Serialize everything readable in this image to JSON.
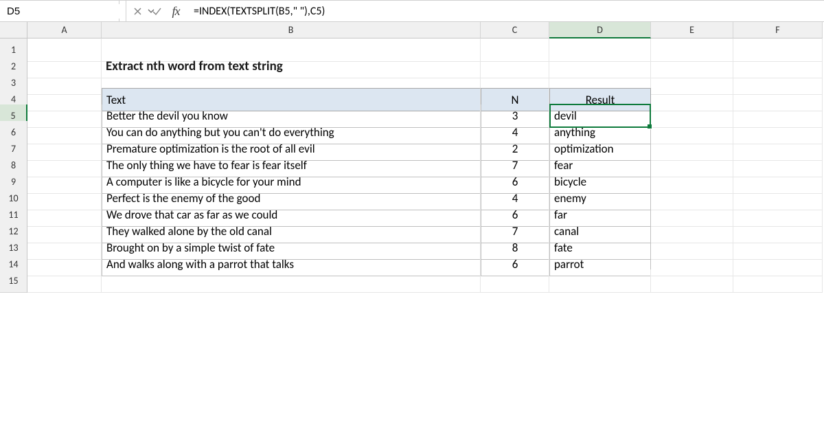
{
  "name_box": "D5",
  "formula": "=INDEX(TEXTSPLIT(B5,\" \"),C5)",
  "columns": [
    "A",
    "B",
    "C",
    "D",
    "E",
    "F"
  ],
  "selected_col_index": 3,
  "selected_row_index": 4,
  "title": "Extract nth word from text string",
  "headers": {
    "text": "Text",
    "n": "N",
    "result": "Result"
  },
  "rows": [
    {
      "text": "Better the devil you know",
      "n": 3,
      "result": "devil"
    },
    {
      "text": "You can do anything but you can't do everything",
      "n": 4,
      "result": "anything"
    },
    {
      "text": "Premature optimization is the root of all evil",
      "n": 2,
      "result": "optimization"
    },
    {
      "text": "The only thing we have to fear is fear itself",
      "n": 7,
      "result": "fear"
    },
    {
      "text": "A computer is like a bicycle for your mind",
      "n": 6,
      "result": "bicycle"
    },
    {
      "text": "Perfect is the enemy of the good",
      "n": 4,
      "result": "enemy"
    },
    {
      "text": "We drove that car as far as we could",
      "n": 6,
      "result": "far"
    },
    {
      "text": "They walked alone by the old canal",
      "n": 7,
      "result": "canal"
    },
    {
      "text": "Brought on by a simple twist of fate",
      "n": 8,
      "result": "fate"
    },
    {
      "text": "And walks along with a parrot that talks",
      "n": 6,
      "result": "parrot"
    }
  ],
  "row_numbers_total": 15,
  "colors": {
    "header_bg": "#dce6f1",
    "selection_border": "#0e7a3b",
    "grid_line": "#e6e6e6",
    "table_border": "#bfbfbf"
  }
}
